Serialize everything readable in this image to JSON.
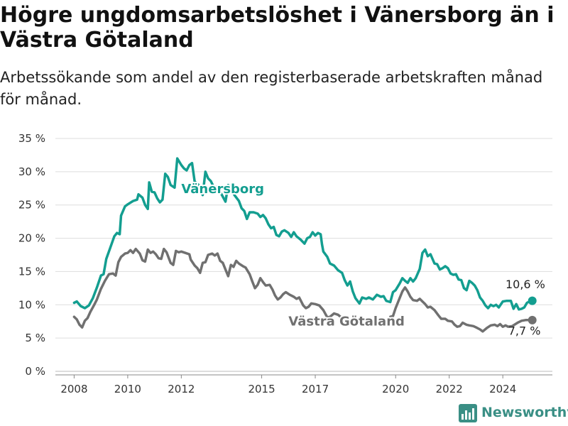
{
  "title": "Högre ungdomsarbetslöshet i Vänersborg än i Västra Götaland",
  "subtitle": "Arbetssökande som andel av den registerbaserade arbetskraften månad för månad.",
  "brand": {
    "name": "Newsworthy",
    "icon": "newsworthy-chart-icon",
    "color": "#3a8f85"
  },
  "chart_data": {
    "type": "line",
    "title": "Högre ungdomsarbetslöshet i Vänersborg än i Västra Götaland",
    "subtitle": "Arbetssökande som andel av den registerbaserade arbetskraften månad för månad.",
    "xlabel": "",
    "ylabel": "",
    "xlim": [
      2007.3,
      2025.85
    ],
    "ylim": [
      0,
      35
    ],
    "y_ticks": [
      0,
      5,
      10,
      15,
      20,
      25,
      30,
      35
    ],
    "y_tick_labels": [
      "0 %",
      "5 %",
      "10 %",
      "15 %",
      "20 %",
      "25 %",
      "30 %",
      "35 %"
    ],
    "x_ticks": [
      2008,
      2010,
      2012,
      2015,
      2017,
      2020,
      2022,
      2024
    ],
    "x_tick_labels": [
      "2008",
      "2010",
      "2012",
      "2015",
      "2017",
      "2020",
      "2022",
      "2024"
    ],
    "grid": true,
    "legend": "none (inline series labels)",
    "series": [
      {
        "name": "Vänersborg",
        "color": "#139e90",
        "end_label": "10,6 %",
        "points": [
          [
            2008.0,
            10.3
          ],
          [
            2008.1,
            10.5
          ],
          [
            2008.25,
            9.8
          ],
          [
            2008.4,
            9.5
          ],
          [
            2008.55,
            9.9
          ],
          [
            2008.7,
            11.0
          ],
          [
            2008.85,
            12.6
          ],
          [
            2009.0,
            14.4
          ],
          [
            2009.1,
            14.6
          ],
          [
            2009.2,
            16.9
          ],
          [
            2009.35,
            18.6
          ],
          [
            2009.5,
            20.3
          ],
          [
            2009.6,
            20.8
          ],
          [
            2009.7,
            20.6
          ],
          [
            2009.75,
            23.4
          ],
          [
            2009.9,
            24.8
          ],
          [
            2010.0,
            25.1
          ],
          [
            2010.2,
            25.6
          ],
          [
            2010.35,
            25.8
          ],
          [
            2010.4,
            26.6
          ],
          [
            2010.55,
            26.1
          ],
          [
            2010.65,
            25.0
          ],
          [
            2010.75,
            24.4
          ],
          [
            2010.8,
            28.4
          ],
          [
            2010.9,
            27.0
          ],
          [
            2011.0,
            26.9
          ],
          [
            2011.1,
            26.0
          ],
          [
            2011.2,
            25.4
          ],
          [
            2011.3,
            25.8
          ],
          [
            2011.4,
            29.7
          ],
          [
            2011.5,
            29.2
          ],
          [
            2011.6,
            28.0
          ],
          [
            2011.75,
            27.6
          ],
          [
            2011.85,
            32.0
          ],
          [
            2012.0,
            31.0
          ],
          [
            2012.1,
            30.5
          ],
          [
            2012.2,
            30.2
          ],
          [
            2012.3,
            31.0
          ],
          [
            2012.4,
            31.3
          ],
          [
            2012.5,
            28.5
          ],
          [
            2012.65,
            28.0
          ],
          [
            2012.8,
            26.5
          ],
          [
            2012.9,
            30.0
          ],
          [
            2013.0,
            29.0
          ],
          [
            2013.1,
            28.6
          ],
          [
            2013.2,
            27.8
          ],
          [
            2013.3,
            27.7
          ],
          [
            2013.4,
            27.2
          ],
          [
            2013.5,
            26.6
          ],
          [
            2013.65,
            25.5
          ],
          [
            2013.75,
            28.0
          ],
          [
            2013.85,
            27.4
          ],
          [
            2014.0,
            26.4
          ],
          [
            2014.15,
            25.6
          ],
          [
            2014.25,
            24.5
          ],
          [
            2014.35,
            24.1
          ],
          [
            2014.45,
            22.9
          ],
          [
            2014.55,
            23.9
          ],
          [
            2014.7,
            23.9
          ],
          [
            2014.85,
            23.7
          ],
          [
            2014.95,
            23.2
          ],
          [
            2015.05,
            23.5
          ],
          [
            2015.15,
            23.0
          ],
          [
            2015.25,
            22.1
          ],
          [
            2015.35,
            21.5
          ],
          [
            2015.45,
            21.7
          ],
          [
            2015.55,
            20.5
          ],
          [
            2015.65,
            20.3
          ],
          [
            2015.75,
            21.0
          ],
          [
            2015.85,
            21.2
          ],
          [
            2016.0,
            20.8
          ],
          [
            2016.1,
            20.2
          ],
          [
            2016.2,
            20.9
          ],
          [
            2016.3,
            20.3
          ],
          [
            2016.45,
            19.8
          ],
          [
            2016.6,
            19.2
          ],
          [
            2016.7,
            20.0
          ],
          [
            2016.8,
            20.2
          ],
          [
            2016.9,
            20.9
          ],
          [
            2017.0,
            20.4
          ],
          [
            2017.1,
            20.8
          ],
          [
            2017.2,
            20.6
          ],
          [
            2017.25,
            19.1
          ],
          [
            2017.3,
            18.0
          ],
          [
            2017.45,
            17.2
          ],
          [
            2017.55,
            16.2
          ],
          [
            2017.7,
            15.9
          ],
          [
            2017.85,
            15.2
          ],
          [
            2018.0,
            14.8
          ],
          [
            2018.1,
            13.7
          ],
          [
            2018.2,
            12.9
          ],
          [
            2018.3,
            13.5
          ],
          [
            2018.4,
            12.0
          ],
          [
            2018.5,
            11.0
          ],
          [
            2018.65,
            10.2
          ],
          [
            2018.75,
            11.1
          ],
          [
            2018.9,
            10.9
          ],
          [
            2019.0,
            11.1
          ],
          [
            2019.15,
            10.8
          ],
          [
            2019.3,
            11.5
          ],
          [
            2019.45,
            11.2
          ],
          [
            2019.55,
            11.3
          ],
          [
            2019.65,
            10.6
          ],
          [
            2019.8,
            10.4
          ],
          [
            2019.9,
            11.9
          ],
          [
            2020.0,
            12.2
          ],
          [
            2020.15,
            13.2
          ],
          [
            2020.25,
            14.0
          ],
          [
            2020.35,
            13.6
          ],
          [
            2020.45,
            13.3
          ],
          [
            2020.55,
            14.0
          ],
          [
            2020.65,
            13.5
          ],
          [
            2020.75,
            14.0
          ],
          [
            2020.9,
            15.4
          ],
          [
            2021.0,
            17.8
          ],
          [
            2021.1,
            18.3
          ],
          [
            2021.2,
            17.3
          ],
          [
            2021.3,
            17.6
          ],
          [
            2021.45,
            16.2
          ],
          [
            2021.55,
            16.1
          ],
          [
            2021.65,
            15.3
          ],
          [
            2021.75,
            15.5
          ],
          [
            2021.85,
            15.8
          ],
          [
            2021.95,
            15.5
          ],
          [
            2022.05,
            14.7
          ],
          [
            2022.15,
            14.5
          ],
          [
            2022.25,
            14.6
          ],
          [
            2022.35,
            13.8
          ],
          [
            2022.45,
            13.7
          ],
          [
            2022.55,
            12.5
          ],
          [
            2022.65,
            12.2
          ],
          [
            2022.75,
            13.6
          ],
          [
            2022.85,
            13.3
          ],
          [
            2022.95,
            12.9
          ],
          [
            2023.05,
            12.2
          ],
          [
            2023.15,
            11.1
          ],
          [
            2023.25,
            10.6
          ],
          [
            2023.35,
            9.9
          ],
          [
            2023.45,
            9.5
          ],
          [
            2023.55,
            10.0
          ],
          [
            2023.65,
            9.8
          ],
          [
            2023.75,
            10.0
          ],
          [
            2023.85,
            9.6
          ],
          [
            2024.0,
            10.5
          ],
          [
            2024.15,
            10.6
          ],
          [
            2024.3,
            10.6
          ],
          [
            2024.4,
            9.4
          ],
          [
            2024.5,
            10.1
          ],
          [
            2024.6,
            9.3
          ],
          [
            2024.7,
            9.4
          ],
          [
            2024.8,
            9.6
          ],
          [
            2024.9,
            10.3
          ],
          [
            2025.0,
            10.5
          ],
          [
            2025.1,
            10.6
          ]
        ]
      },
      {
        "name": "Västra Götaland",
        "color": "#707070",
        "end_label": "7,7 %",
        "points": [
          [
            2008.0,
            8.2
          ],
          [
            2008.1,
            7.8
          ],
          [
            2008.2,
            7.0
          ],
          [
            2008.3,
            6.6
          ],
          [
            2008.4,
            7.6
          ],
          [
            2008.5,
            8.0
          ],
          [
            2008.6,
            8.9
          ],
          [
            2008.75,
            10.0
          ],
          [
            2008.85,
            10.8
          ],
          [
            2009.0,
            12.4
          ],
          [
            2009.15,
            13.6
          ],
          [
            2009.3,
            14.6
          ],
          [
            2009.45,
            14.7
          ],
          [
            2009.55,
            14.4
          ],
          [
            2009.65,
            16.4
          ],
          [
            2009.75,
            17.2
          ],
          [
            2009.9,
            17.7
          ],
          [
            2010.0,
            17.8
          ],
          [
            2010.1,
            18.2
          ],
          [
            2010.2,
            17.8
          ],
          [
            2010.3,
            18.4
          ],
          [
            2010.45,
            17.7
          ],
          [
            2010.55,
            16.7
          ],
          [
            2010.65,
            16.5
          ],
          [
            2010.75,
            18.3
          ],
          [
            2010.85,
            17.8
          ],
          [
            2010.95,
            18.0
          ],
          [
            2011.05,
            17.6
          ],
          [
            2011.15,
            17.0
          ],
          [
            2011.25,
            16.9
          ],
          [
            2011.35,
            18.4
          ],
          [
            2011.45,
            17.9
          ],
          [
            2011.6,
            16.3
          ],
          [
            2011.7,
            16.0
          ],
          [
            2011.8,
            18.1
          ],
          [
            2011.9,
            17.9
          ],
          [
            2012.0,
            18.0
          ],
          [
            2012.15,
            17.8
          ],
          [
            2012.3,
            17.6
          ],
          [
            2012.35,
            16.8
          ],
          [
            2012.5,
            15.9
          ],
          [
            2012.6,
            15.5
          ],
          [
            2012.7,
            14.8
          ],
          [
            2012.8,
            16.3
          ],
          [
            2012.9,
            16.4
          ],
          [
            2013.0,
            17.5
          ],
          [
            2013.15,
            17.7
          ],
          [
            2013.25,
            17.4
          ],
          [
            2013.35,
            17.7
          ],
          [
            2013.45,
            16.6
          ],
          [
            2013.55,
            16.3
          ],
          [
            2013.65,
            15.3
          ],
          [
            2013.75,
            14.3
          ],
          [
            2013.85,
            16.0
          ],
          [
            2013.95,
            15.7
          ],
          [
            2014.05,
            16.6
          ],
          [
            2014.15,
            16.2
          ],
          [
            2014.3,
            15.8
          ],
          [
            2014.4,
            15.6
          ],
          [
            2014.55,
            14.6
          ],
          [
            2014.65,
            13.5
          ],
          [
            2014.75,
            12.5
          ],
          [
            2014.85,
            13.0
          ],
          [
            2014.95,
            14.0
          ],
          [
            2015.05,
            13.4
          ],
          [
            2015.15,
            12.9
          ],
          [
            2015.3,
            13.0
          ],
          [
            2015.4,
            12.3
          ],
          [
            2015.5,
            11.4
          ],
          [
            2015.6,
            10.8
          ],
          [
            2015.7,
            11.1
          ],
          [
            2015.8,
            11.6
          ],
          [
            2015.9,
            11.9
          ],
          [
            2016.05,
            11.5
          ],
          [
            2016.2,
            11.2
          ],
          [
            2016.3,
            10.9
          ],
          [
            2016.4,
            11.1
          ],
          [
            2016.55,
            9.9
          ],
          [
            2016.65,
            9.5
          ],
          [
            2016.75,
            9.7
          ],
          [
            2016.85,
            10.2
          ],
          [
            2017.0,
            10.1
          ],
          [
            2017.15,
            9.9
          ],
          [
            2017.3,
            9.2
          ],
          [
            2017.45,
            8.1
          ],
          [
            2017.55,
            8.2
          ],
          [
            2017.7,
            8.7
          ],
          [
            2017.85,
            8.5
          ],
          [
            2018.0,
            8.0
          ],
          [
            2018.15,
            7.9
          ],
          [
            2019.8,
            8.2
          ],
          [
            2019.9,
            8.3
          ],
          [
            2020.0,
            9.5
          ],
          [
            2020.15,
            11.0
          ],
          [
            2020.25,
            12.0
          ],
          [
            2020.35,
            12.6
          ],
          [
            2020.45,
            12.0
          ],
          [
            2020.55,
            11.2
          ],
          [
            2020.65,
            10.7
          ],
          [
            2020.8,
            10.6
          ],
          [
            2020.9,
            10.9
          ],
          [
            2021.0,
            10.5
          ],
          [
            2021.1,
            10.1
          ],
          [
            2021.2,
            9.6
          ],
          [
            2021.3,
            9.7
          ],
          [
            2021.45,
            9.2
          ],
          [
            2021.6,
            8.4
          ],
          [
            2021.7,
            7.9
          ],
          [
            2021.85,
            7.9
          ],
          [
            2021.95,
            7.6
          ],
          [
            2022.1,
            7.5
          ],
          [
            2022.2,
            7.0
          ],
          [
            2022.3,
            6.7
          ],
          [
            2022.4,
            6.8
          ],
          [
            2022.5,
            7.3
          ],
          [
            2022.65,
            7.0
          ],
          [
            2022.75,
            6.9
          ],
          [
            2022.9,
            6.8
          ],
          [
            2023.0,
            6.6
          ],
          [
            2023.15,
            6.3
          ],
          [
            2023.25,
            6.0
          ],
          [
            2023.4,
            6.5
          ],
          [
            2023.55,
            6.9
          ],
          [
            2023.7,
            7.0
          ],
          [
            2023.8,
            6.8
          ],
          [
            2023.9,
            7.1
          ],
          [
            2024.0,
            6.7
          ],
          [
            2024.1,
            6.9
          ],
          [
            2024.2,
            6.7
          ],
          [
            2024.35,
            6.8
          ],
          [
            2024.55,
            7.3
          ],
          [
            2024.7,
            7.6
          ],
          [
            2024.85,
            7.7
          ],
          [
            2025.0,
            7.7
          ],
          [
            2025.1,
            7.7
          ]
        ]
      }
    ],
    "annotations": [
      {
        "text": "Vänersborg",
        "series": "Vänersborg",
        "x": 2012.0,
        "y": 26.8
      },
      {
        "text": "Västra Götaland",
        "series": "Västra Götaland",
        "x": 2016.0,
        "y": 6.9
      },
      {
        "text": "10,6 %",
        "series": "Vänersborg",
        "x": 2024.1,
        "y": 12.5
      },
      {
        "text": "7,7 %",
        "series": "Västra Götaland",
        "x": 2024.2,
        "y": 5.5
      }
    ]
  }
}
